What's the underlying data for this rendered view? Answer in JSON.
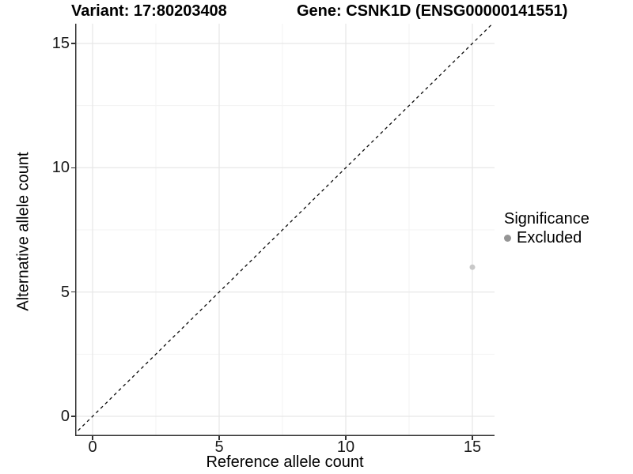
{
  "header": {
    "variant_title": "Variant: 17:80203408",
    "gene_title": "Gene: CSNK1D (ENSG00000141551)"
  },
  "chart_data": {
    "type": "scatter",
    "title": "Variant: 17:80203408   Gene: CSNK1D (ENSG00000141551)",
    "xlabel": "Reference allele count",
    "ylabel": "Alternative allele count",
    "xlim": [
      -0.69,
      15.88
    ],
    "ylim": [
      -0.79,
      15.79
    ],
    "x_major_ticks": [
      0,
      5,
      10,
      15
    ],
    "y_major_ticks": [
      0,
      5,
      10,
      15
    ],
    "x_tick_labels": [
      "0",
      "5",
      "10",
      "15"
    ],
    "y_tick_labels": [
      "0",
      "5",
      "10",
      "15"
    ],
    "x_minor_ticks": [
      2.5,
      7.5,
      12.5
    ],
    "y_minor_ticks": [
      2.5,
      7.5,
      12.5
    ],
    "grid": true,
    "reference_line": {
      "type": "identity",
      "slope": 1,
      "intercept": 0,
      "style": "dashed",
      "color": "#000000"
    },
    "series": [
      {
        "name": "Excluded",
        "color": "#c8c8c8",
        "points": [
          {
            "x": 15,
            "y": 6
          }
        ]
      }
    ],
    "legend": {
      "title": "Significance",
      "position": "right",
      "items": [
        {
          "label": "Excluded",
          "color": "#959595"
        }
      ]
    },
    "style": {
      "axis_line_color": "#333333",
      "grid_major_color": "#e6e6e6",
      "grid_minor_color": "#f3f3f3",
      "point_color": "#c8c8c8",
      "legend_key_color": "#959595",
      "reference_line_color": "#0a0a0a",
      "background": "#ffffff"
    }
  }
}
